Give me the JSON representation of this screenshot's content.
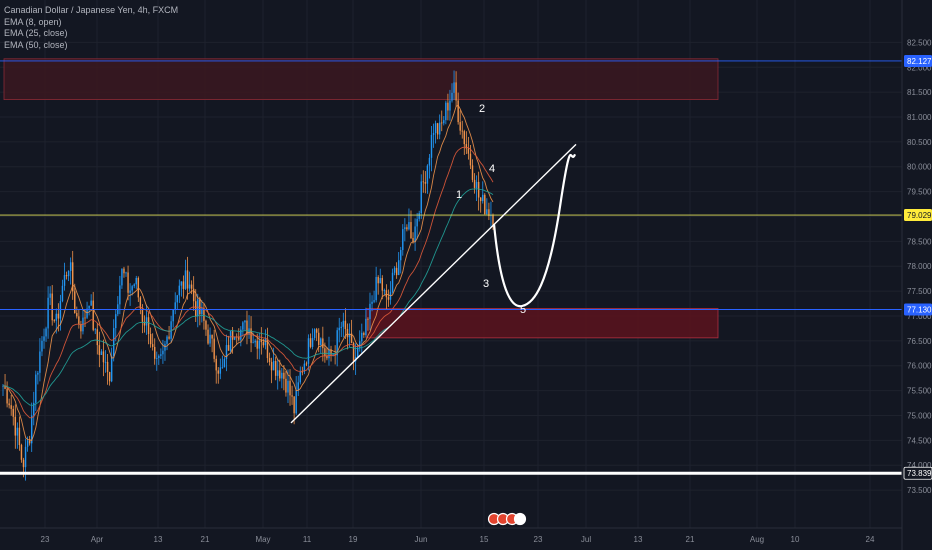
{
  "legend": {
    "symbol_title": "Canadian Dollar / Japanese Yen, 4h, FXCM",
    "indicators": [
      "EMA (8, open)",
      "EMA (25, close)",
      "EMA (50, close)"
    ]
  },
  "colors": {
    "background": "#131722",
    "up_candle": "#2196f3",
    "down_candle": "#f0934b",
    "ema8": "#f0934b",
    "ema25": "#e05a3a",
    "ema50": "#22a39a",
    "supply_zone": "#4a1a22",
    "demand_zone": "#5c131d",
    "level_blue": "#2962ff",
    "level_yellow": "#e0e05a"
  },
  "chart_data": {
    "type": "candlestick",
    "title": "Canadian Dollar / Japanese Yen, 4h, FXCM",
    "y_axis": {
      "position": "right",
      "range": [
        73.2,
        82.95
      ],
      "ticks": [
        "73.500",
        "74.000",
        "74.500",
        "75.000",
        "75.500",
        "76.000",
        "76.500",
        "77.000",
        "77.500",
        "78.000",
        "78.500",
        "79.000",
        "79.500",
        "80.000",
        "80.500",
        "81.000",
        "81.500",
        "82.000",
        "82.500"
      ]
    },
    "x_axis": {
      "ticks": [
        "23",
        "Apr",
        "13",
        "21",
        "May",
        "11",
        "19",
        "Jun",
        "15",
        "23",
        "Jul",
        "13",
        "21",
        "Aug",
        "10",
        "24"
      ]
    },
    "price_path_daily": [
      75.6,
      75.3,
      74.7,
      74.0,
      74.6,
      75.8,
      76.6,
      77.3,
      76.8,
      77.6,
      78.1,
      77.0,
      76.8,
      77.4,
      76.5,
      76.2,
      75.7,
      77.2,
      77.9,
      77.5,
      77.7,
      77.0,
      76.8,
      75.9,
      76.1,
      76.7,
      77.4,
      77.6,
      77.8,
      77.2,
      77.0,
      76.6,
      76.2,
      75.8,
      76.4,
      76.8,
      76.7,
      76.8,
      76.5,
      76.6,
      76.3,
      76.0,
      75.9,
      75.6,
      75.1,
      75.9,
      76.3,
      76.9,
      76.5,
      76.1,
      76.3,
      76.8,
      76.6,
      76.1,
      76.4,
      76.8,
      77.5,
      77.7,
      77.2,
      77.8,
      78.3,
      78.9,
      78.6,
      79.4,
      80.0,
      80.8,
      80.7,
      81.2,
      81.6,
      80.9,
      80.4,
      79.9,
      79.3,
      79.2,
      79.03
    ],
    "horizontal_levels": [
      {
        "price": 82.127,
        "label": "82.127",
        "color": "#2962ff"
      },
      {
        "price": 79.029,
        "label": "79.029",
        "color": "#e0e05a"
      },
      {
        "price": 77.13,
        "label": "77.130",
        "color": "#2962ff"
      },
      {
        "price": 73.839,
        "label": "73.839",
        "color": "#ffffff"
      }
    ],
    "zones": [
      {
        "name": "supply-zone",
        "from": 81.35,
        "to": 82.17
      },
      {
        "name": "demand-zone",
        "from": 76.56,
        "to": 77.15
      }
    ],
    "trendline": {
      "from": [
        74.85,
        "May 6"
      ],
      "to": [
        80.45,
        "Jun 30"
      ]
    },
    "annotations": [
      "1",
      "2",
      "3",
      "4",
      "5"
    ]
  }
}
